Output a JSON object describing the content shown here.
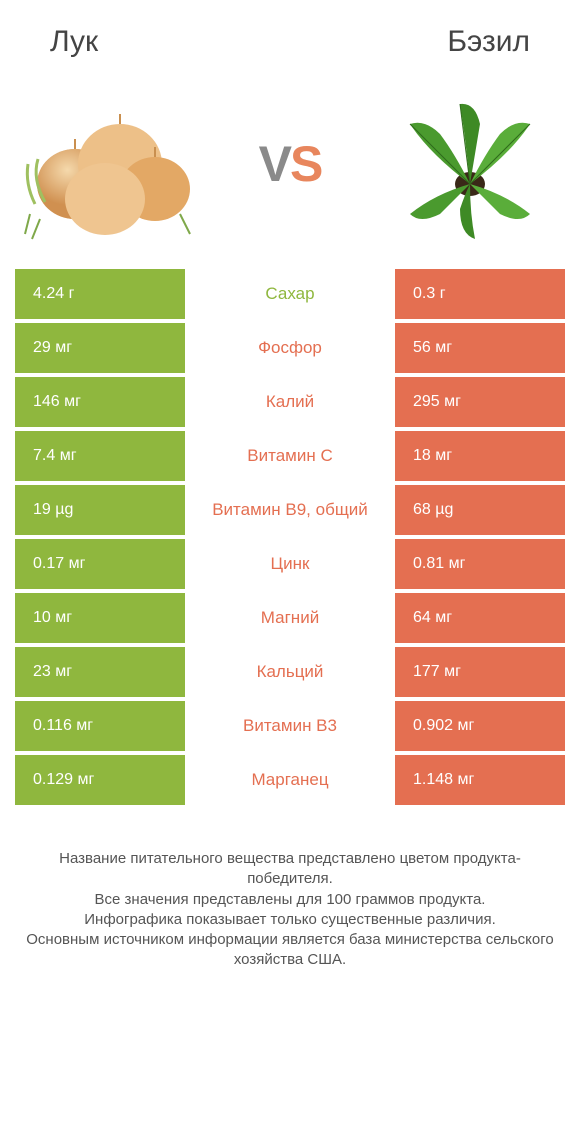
{
  "left_title": "Лук",
  "right_title": "Бэзил",
  "vs_v": "V",
  "vs_s": "S",
  "colors": {
    "left_bar": "#8fb73e",
    "right_bar": "#e46f51",
    "mid_winner_left": "#8fb73e",
    "mid_winner_right": "#e46f51",
    "row_gap": "#ffffff"
  },
  "rows": [
    {
      "nutrient": "Сахар",
      "left": "4.24 г",
      "right": "0.3 г",
      "winner": "left"
    },
    {
      "nutrient": "Фосфор",
      "left": "29 мг",
      "right": "56 мг",
      "winner": "right"
    },
    {
      "nutrient": "Калий",
      "left": "146 мг",
      "right": "295 мг",
      "winner": "right"
    },
    {
      "nutrient": "Витамин C",
      "left": "7.4 мг",
      "right": "18 мг",
      "winner": "right"
    },
    {
      "nutrient": "Витамин B9, общий",
      "left": "19 µg",
      "right": "68 µg",
      "winner": "right"
    },
    {
      "nutrient": "Цинк",
      "left": "0.17 мг",
      "right": "0.81 мг",
      "winner": "right"
    },
    {
      "nutrient": "Магний",
      "left": "10 мг",
      "right": "64 мг",
      "winner": "right"
    },
    {
      "nutrient": "Кальций",
      "left": "23 мг",
      "right": "177 мг",
      "winner": "right"
    },
    {
      "nutrient": "Витамин B3",
      "left": "0.116 мг",
      "right": "0.902 мг",
      "winner": "right"
    },
    {
      "nutrient": "Марганец",
      "left": "0.129 мг",
      "right": "1.148 мг",
      "winner": "right"
    }
  ],
  "footnote": "Название питательного вещества представлено цветом продукта-победителя.\nВсе значения представлены для 100 граммов продукта.\nИнфографика показывает только существенные различия.\nОсновным источником информации является база министерства сельского хозяйства США.",
  "onion_svg_colors": {
    "body": "#e8b67a",
    "shadow": "#c98f4f",
    "leaves": "#7fa84a"
  },
  "basil_svg_colors": {
    "leaf": "#4a9a2e",
    "leaf_dark": "#2e6b1a",
    "stem": "#3a2818"
  }
}
